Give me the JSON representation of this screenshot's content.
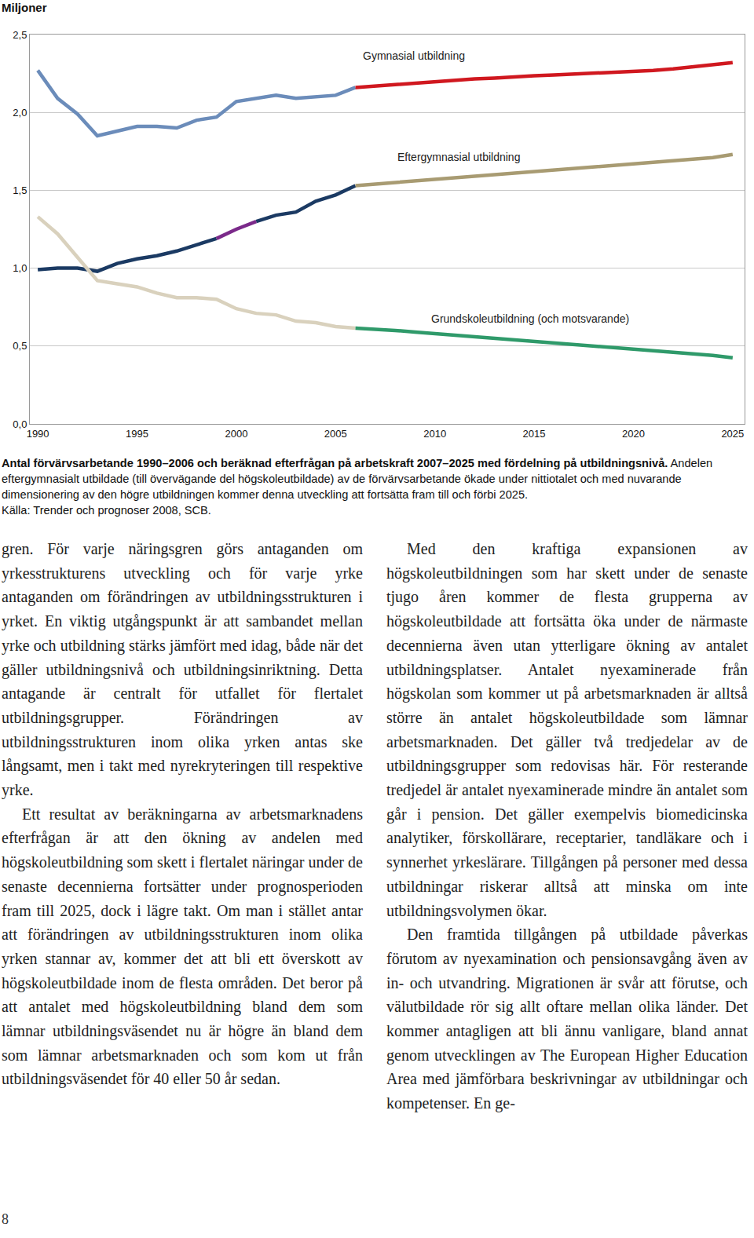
{
  "chart_data": {
    "type": "line",
    "ylabel": "Miljoner",
    "x": [
      1990,
      1991,
      1992,
      1993,
      1994,
      1995,
      1996,
      1997,
      1998,
      1999,
      2000,
      2001,
      2002,
      2003,
      2004,
      2005,
      2006,
      2007,
      2008,
      2009,
      2010,
      2011,
      2012,
      2013,
      2014,
      2015,
      2016,
      2017,
      2018,
      2019,
      2020,
      2021,
      2022,
      2023,
      2024,
      2025
    ],
    "xlim": [
      1989.6,
      2025.6
    ],
    "xticks": [
      1990,
      1995,
      2000,
      2005,
      2010,
      2015,
      2020,
      2025
    ],
    "ylim": [
      0,
      2.5
    ],
    "yticks": [
      {
        "value": 0,
        "label": "0,0"
      },
      {
        "value": 0.5,
        "label": "0,5"
      },
      {
        "value": 1,
        "label": "1,0"
      },
      {
        "value": 1.5,
        "label": "1,5"
      },
      {
        "value": 2,
        "label": "2,0"
      },
      {
        "value": 2.5,
        "label": "2,5"
      }
    ],
    "grid": true,
    "series": [
      {
        "color": "#6b8cba",
        "values": [
          2.27,
          2.09,
          1.99,
          1.85,
          1.88,
          1.91,
          1.91,
          1.9,
          1.95,
          1.97,
          2.07,
          2.09,
          2.11,
          2.09,
          2.1,
          2.11,
          2.16,
          null,
          null,
          null,
          null,
          null,
          null,
          null,
          null,
          null,
          null,
          null,
          null,
          null,
          null,
          null,
          null,
          null,
          null,
          null
        ]
      },
      {
        "name": "Gymnasial utbildning",
        "color": "#d0181f",
        "values": [
          null,
          null,
          null,
          null,
          null,
          null,
          null,
          null,
          null,
          null,
          null,
          null,
          null,
          null,
          null,
          null,
          2.16,
          2.17,
          2.18,
          2.19,
          2.2,
          2.21,
          2.215,
          2.22,
          2.23,
          2.235,
          2.24,
          2.245,
          2.25,
          2.255,
          2.26,
          2.27,
          2.28,
          2.295,
          2.31,
          2.32
        ]
      },
      {
        "color": "#1b3a63",
        "values": [
          0.99,
          1.0,
          1.0,
          0.98,
          1.03,
          1.06,
          1.08,
          1.11,
          1.15,
          1.19,
          null,
          1.3,
          1.34,
          1.36,
          1.43,
          1.47,
          1.53,
          null,
          null,
          null,
          null,
          null,
          null,
          null,
          null,
          null,
          null,
          null,
          null,
          null,
          null,
          null,
          null,
          null,
          null,
          null
        ]
      },
      {
        "color": "#7b2a8a",
        "values": [
          null,
          null,
          null,
          null,
          null,
          null,
          null,
          null,
          null,
          1.19,
          1.25,
          1.3,
          null,
          null,
          null,
          null,
          null,
          null,
          null,
          null,
          null,
          null,
          null,
          null,
          null,
          null,
          null,
          null,
          null,
          null,
          null,
          null,
          null,
          null,
          null,
          null
        ]
      },
      {
        "name": "Eftergymnasial utbildning",
        "color": "#a89b72",
        "values": [
          null,
          null,
          null,
          null,
          null,
          null,
          null,
          null,
          null,
          null,
          null,
          null,
          null,
          null,
          null,
          null,
          1.53,
          1.54,
          1.55,
          1.56,
          1.57,
          1.58,
          1.59,
          1.6,
          1.61,
          1.62,
          1.63,
          1.64,
          1.65,
          1.66,
          1.67,
          1.68,
          1.69,
          1.7,
          1.71,
          1.73
        ]
      },
      {
        "color": "#d9d1bd",
        "values": [
          1.33,
          1.22,
          1.07,
          0.92,
          0.9,
          0.88,
          0.84,
          0.81,
          0.81,
          0.8,
          0.74,
          0.71,
          0.7,
          0.66,
          0.65,
          0.625,
          0.615,
          null,
          null,
          null,
          null,
          null,
          null,
          null,
          null,
          null,
          null,
          null,
          null,
          null,
          null,
          null,
          null,
          null,
          null,
          null
        ]
      },
      {
        "name": "Grundskoleutbildning (och motsvarande)",
        "color": "#2f9a6a",
        "values": [
          null,
          null,
          null,
          null,
          null,
          null,
          null,
          null,
          null,
          null,
          null,
          null,
          null,
          null,
          null,
          null,
          0.615,
          0.61,
          0.6,
          0.59,
          0.58,
          0.57,
          0.565,
          0.555,
          0.545,
          0.535,
          0.525,
          0.515,
          0.505,
          0.495,
          0.485,
          0.475,
          0.465,
          0.455,
          0.44,
          0.425
        ]
      }
    ]
  },
  "caption": {
    "title": "Antal förvärvsarbetande 1990–2006 och beräknad efterfrågan på arbetskraft 2007–2025 med fördelning på utbildningsnivå.",
    "text": "Andelen eftergymnasialt utbildade (till övervägande del högskoleutbildade) av de förvärvsarbetande ökade under nittiotalet och med nuvarande dimensionering av den högre utbildningen kommer denna utveckling att fortsätta fram till och förbi 2025.",
    "source": "Källa: Trender och prognoser 2008, SCB."
  },
  "columns": [
    [
      "gren. För varje näringsgren görs antaganden om yrkesstrukturens utveckling och för varje yrke antaganden om förändringen av utbildningsstrukturen i yrket. En viktig utgångspunkt är att sambandet mellan yrke och utbildning stärks jämfört med idag, både när det gäller utbildningsnivå och utbildningsinriktning. Detta antagande är centralt för utfallet för flertalet utbildningsgrupper. Förändringen av utbildningsstrukturen inom olika yrken antas ske långsamt, men i takt med nyrekryteringen till respektive yrke.",
      "Ett resultat av beräkningarna av arbetsmarknadens efterfrågan är att den ökning av andelen med högskoleutbildning som skett i flertalet näringar under de senaste decennierna fortsätter under prognosperioden fram till 2025, dock i lägre takt. Om man i stället antar att förändringen av utbildningsstrukturen inom olika yrken stannar av, kommer det att bli ett överskott av högskoleutbildade inom de flesta områden. Det beror på att antalet med högskoleutbildning bland dem som lämnar utbildningsväsendet nu är högre än bland dem som lämnar arbetsmarknaden och som kom ut från utbildningsväsendet för 40 eller 50 år sedan."
    ],
    [
      "Med den kraftiga expansionen av högskoleutbildningen som har skett under de senaste tjugo åren kommer de flesta grupperna av högskoleutbildade att fortsätta öka under de närmaste decennierna även utan ytterligare ökning av antalet utbildningsplatser. Antalet nyexaminerade från högskolan som kommer ut på arbetsmarknaden är alltså större än antalet högskoleutbildade som lämnar arbetsmarknaden. Det gäller två tredjedelar av de utbildningsgrupper som redovisas här. För resterande tredjedel är antalet nyexaminerade mindre än antalet som går i pension. Det gäller exempelvis biomedicinska analytiker, förskollärare, receptarier, tandläkare och i synnerhet yrkeslärare. Tillgången på personer med dessa utbildningar riskerar alltså att minska om inte utbildningsvolymen ökar.",
      "Den framtida tillgången på utbildade påverkas förutom av nyexamination och pensionsavgång även av in- och utvandring. Migrationen är svår att förutse, och välutbildade rör sig allt oftare mellan olika länder. Det kommer antagligen att bli ännu vanligare, bland annat genom utvecklingen av The European Higher Education Area med jämförbara beskrivningar av utbildningar och kompetenser. En ge-"
    ]
  ],
  "page_number": "8"
}
